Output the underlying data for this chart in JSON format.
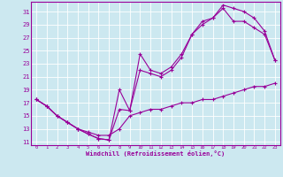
{
  "xlabel": "Windchill (Refroidissement éolien,°C)",
  "bg_color": "#cce8f0",
  "line_color": "#990099",
  "grid_color": "#ffffff",
  "xlim": [
    -0.5,
    23.5
  ],
  "ylim": [
    10.5,
    32.5
  ],
  "yticks": [
    11,
    13,
    15,
    17,
    19,
    21,
    23,
    25,
    27,
    29,
    31
  ],
  "xticks": [
    0,
    1,
    2,
    3,
    4,
    5,
    6,
    7,
    8,
    9,
    10,
    11,
    12,
    13,
    14,
    15,
    16,
    17,
    18,
    19,
    20,
    21,
    22,
    23
  ],
  "line1": {
    "x": [
      0,
      1,
      2,
      3,
      4,
      5,
      6,
      7,
      8,
      9,
      10,
      11,
      12,
      13,
      14,
      15,
      16,
      17,
      18,
      19,
      20,
      21,
      22,
      23
    ],
    "y": [
      17.5,
      16.5,
      15.0,
      14.0,
      13.0,
      12.2,
      11.5,
      11.3,
      19.0,
      15.8,
      24.5,
      22.0,
      21.5,
      22.5,
      24.5,
      27.5,
      29.5,
      30.0,
      32.0,
      31.5,
      31.0,
      30.0,
      28.0,
      23.5
    ]
  },
  "line2": {
    "x": [
      0,
      1,
      2,
      3,
      4,
      5,
      6,
      7,
      8,
      9,
      10,
      11,
      12,
      13,
      14,
      15,
      16,
      17,
      18,
      19,
      20,
      21,
      22,
      23
    ],
    "y": [
      17.5,
      16.5,
      15.0,
      14.0,
      13.0,
      12.2,
      11.5,
      11.3,
      16.0,
      15.8,
      22.0,
      21.5,
      21.0,
      22.0,
      24.0,
      27.5,
      29.0,
      30.0,
      31.5,
      29.5,
      29.5,
      28.5,
      27.5,
      23.5
    ]
  },
  "line3": {
    "x": [
      0,
      1,
      2,
      3,
      4,
      5,
      6,
      7,
      8,
      9,
      10,
      11,
      12,
      13,
      14,
      15,
      16,
      17,
      18,
      19,
      20,
      21,
      22,
      23
    ],
    "y": [
      17.5,
      16.5,
      15.0,
      14.0,
      13.0,
      12.5,
      12.0,
      12.0,
      13.0,
      15.0,
      15.5,
      16.0,
      16.0,
      16.5,
      17.0,
      17.0,
      17.5,
      17.5,
      18.0,
      18.5,
      19.0,
      19.5,
      19.5,
      20.0
    ]
  }
}
